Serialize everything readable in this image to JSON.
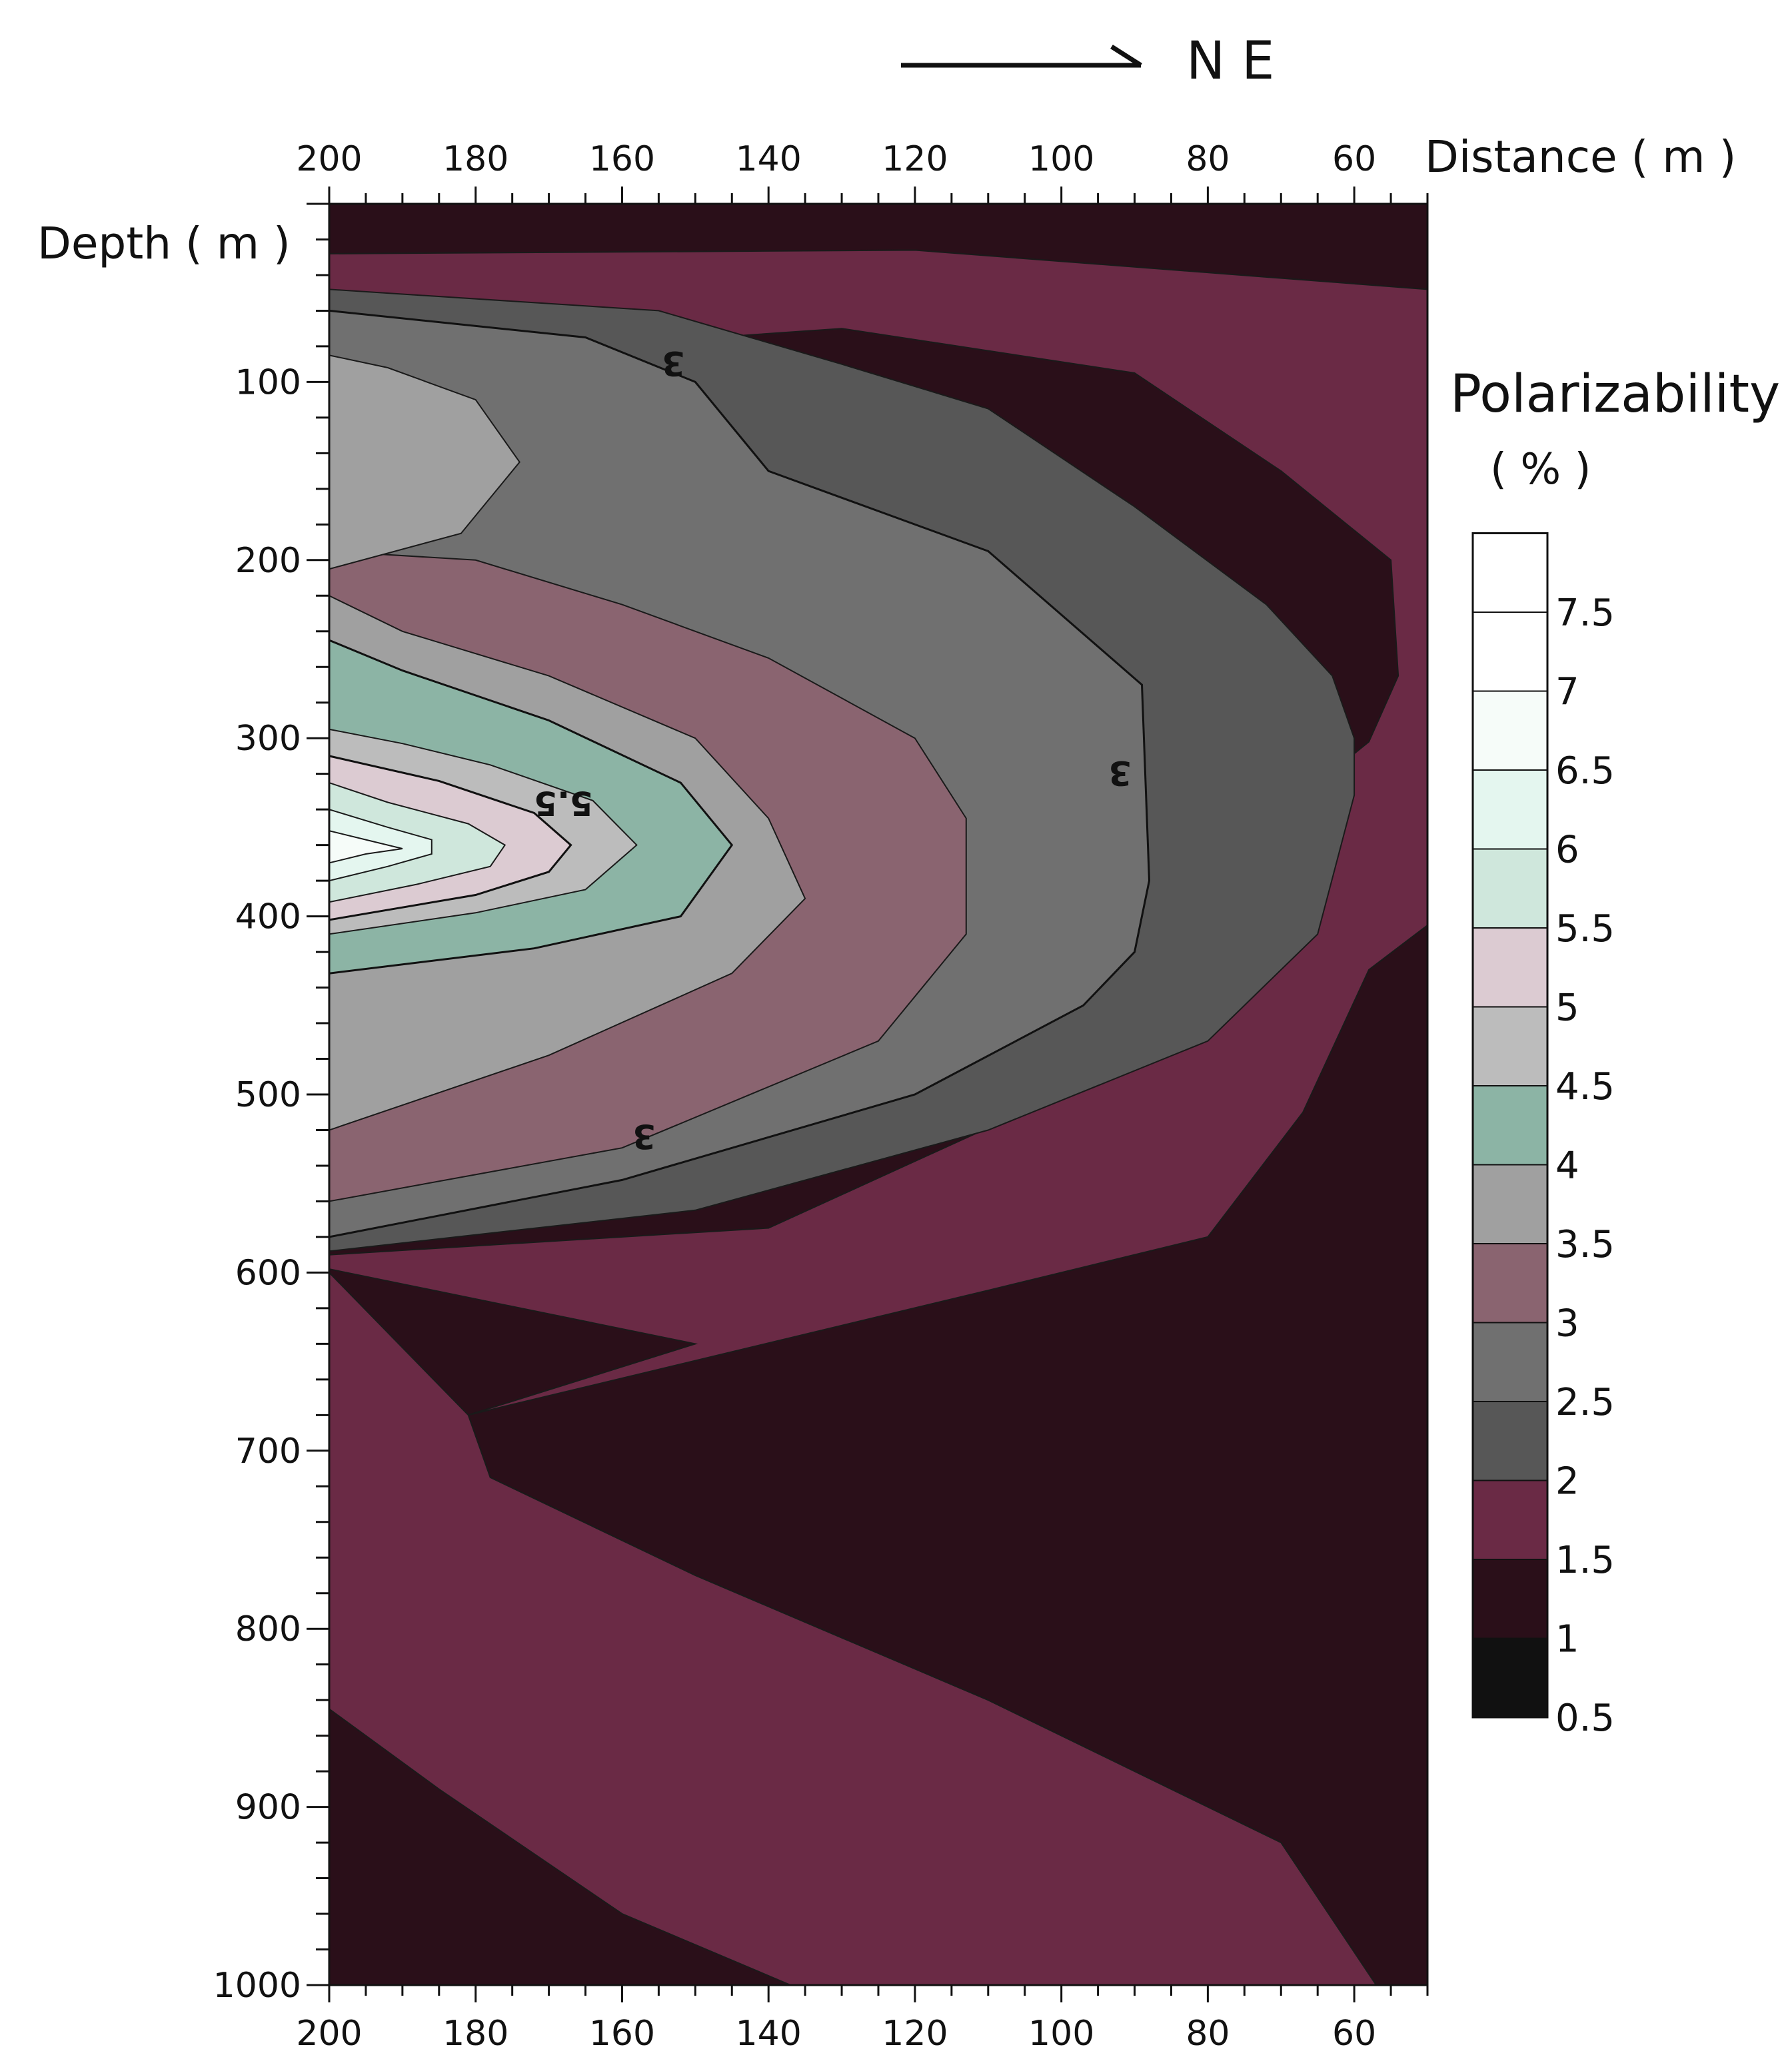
{
  "chart_data": {
    "type": "heatmap",
    "subtype": "filled-contour",
    "direction_label": "N E",
    "xlabel": "Distance ( m )",
    "ylabel": "Depth ( m )",
    "x_axis_position": "top-and-bottom",
    "x_reversed": true,
    "xlim": [
      200,
      50
    ],
    "ylim": [
      0,
      1000
    ],
    "x_ticks": [
      200,
      180,
      160,
      140,
      120,
      100,
      80,
      60
    ],
    "y_ticks": [
      100,
      200,
      300,
      400,
      500,
      600,
      700,
      800,
      900,
      1000
    ],
    "colorbar": {
      "title": "Polarizability",
      "unit": "( % )",
      "levels": [
        0.5,
        1,
        1.5,
        2,
        2.5,
        3,
        3.5,
        4,
        4.5,
        5,
        5.5,
        6,
        6.5,
        7,
        7.5,
        8
      ],
      "tick_labels": [
        "0.5",
        "1",
        "1.5",
        "2",
        "2.5",
        "3",
        "3.5",
        "4",
        "4.5",
        "5",
        "5.5",
        "6",
        "6.5",
        "7",
        "7.5"
      ],
      "colors": [
        "#111111",
        "#2a0f19",
        "#6a2a45",
        "#575757",
        "#707070",
        "#8a6470",
        "#a0a0a0",
        "#8cb4a5",
        "#bcbcbc",
        "#dccbd2",
        "#cfe7dc",
        "#e4f6ef",
        "#f6fcf9",
        "#ffffff",
        "#ffffff"
      ]
    },
    "contour_labels": [
      {
        "value": "3",
        "x": 153,
        "depth": 88
      },
      {
        "value": "3",
        "x": 92,
        "depth": 318
      },
      {
        "value": "3",
        "x": 157,
        "depth": 522
      },
      {
        "value": "5.5",
        "x": 168,
        "depth": 335
      }
    ],
    "regions": [
      {
        "level": 1,
        "polygon": [
          [
            50,
            0
          ],
          [
            200,
            0
          ],
          [
            200,
            28
          ],
          [
            120,
            26
          ],
          [
            50,
            48
          ]
        ]
      },
      {
        "level": 1,
        "polygon": [
          [
            50,
            405
          ],
          [
            58,
            430
          ],
          [
            67,
            510
          ],
          [
            80,
            580
          ],
          [
            110,
            610
          ],
          [
            150,
            640
          ],
          [
            181,
            680
          ],
          [
            178,
            715
          ],
          [
            150,
            770
          ],
          [
            110,
            840
          ],
          [
            70,
            920
          ],
          [
            57,
            1000
          ],
          [
            50,
            1000
          ]
        ]
      },
      {
        "level": 2,
        "polygon": [
          [
            200,
            28
          ],
          [
            200,
            90
          ],
          [
            130,
            70
          ],
          [
            90,
            95
          ],
          [
            70,
            150
          ],
          [
            55,
            200
          ],
          [
            54,
            265
          ],
          [
            58,
            302
          ],
          [
            67,
            332
          ],
          [
            80,
            405
          ],
          [
            100,
            500
          ],
          [
            140,
            575
          ],
          [
            200,
            590
          ],
          [
            200,
            598
          ],
          [
            150,
            640
          ],
          [
            181,
            680
          ],
          [
            178,
            715
          ],
          [
            150,
            770
          ],
          [
            110,
            840
          ],
          [
            70,
            920
          ],
          [
            57,
            1000
          ],
          [
            137,
            1000
          ],
          [
            160,
            960
          ],
          [
            185,
            890
          ],
          [
            200,
            845
          ],
          [
            200,
            600
          ],
          [
            181,
            680
          ],
          [
            110,
            610
          ],
          [
            80,
            580
          ],
          [
            67,
            510
          ],
          [
            58,
            430
          ],
          [
            50,
            405
          ],
          [
            50,
            48
          ],
          [
            120,
            26
          ]
        ]
      },
      {
        "level": 3,
        "polygon": [
          [
            200,
            48
          ],
          [
            200,
            588
          ],
          [
            150,
            565
          ],
          [
            110,
            520
          ],
          [
            80,
            470
          ],
          [
            65,
            410
          ],
          [
            60,
            332
          ],
          [
            60,
            300
          ],
          [
            63,
            265
          ],
          [
            72,
            225
          ],
          [
            90,
            170
          ],
          [
            110,
            115
          ],
          [
            130,
            90
          ],
          [
            155,
            60
          ]
        ]
      },
      {
        "level": 4,
        "polygon": [
          [
            200,
            60
          ],
          [
            200,
            580
          ],
          [
            160,
            548
          ],
          [
            120,
            500
          ],
          [
            97,
            450
          ],
          [
            90,
            420
          ],
          [
            88,
            380
          ],
          [
            89,
            270
          ],
          [
            110,
            195
          ],
          [
            140,
            150
          ],
          [
            150,
            100
          ],
          [
            165,
            75
          ]
        ]
      },
      {
        "level": 5,
        "polygon": [
          [
            200,
            75
          ],
          [
            200,
            560
          ],
          [
            160,
            530
          ],
          [
            125,
            470
          ],
          [
            113,
            410
          ],
          [
            113,
            345
          ],
          [
            120,
            300
          ],
          [
            140,
            255
          ],
          [
            160,
            225
          ],
          [
            180,
            200
          ],
          [
            200,
            195
          ]
        ]
      },
      {
        "level": 6,
        "polygon": [
          [
            200,
            220
          ],
          [
            200,
            520
          ],
          [
            170,
            478
          ],
          [
            145,
            432
          ],
          [
            135,
            390
          ],
          [
            140,
            345
          ],
          [
            150,
            300
          ],
          [
            170,
            265
          ],
          [
            190,
            240
          ]
        ]
      },
      {
        "level": 6,
        "polygon": [
          [
            200,
            85
          ],
          [
            200,
            205
          ],
          [
            182,
            185
          ],
          [
            174,
            145
          ],
          [
            180,
            110
          ],
          [
            192,
            92
          ]
        ]
      },
      {
        "level": 7,
        "polygon": [
          [
            200,
            245
          ],
          [
            200,
            432
          ],
          [
            172,
            418
          ],
          [
            152,
            400
          ],
          [
            145,
            360
          ],
          [
            152,
            325
          ],
          [
            170,
            290
          ],
          [
            190,
            262
          ]
        ]
      },
      {
        "level": 8,
        "polygon": [
          [
            200,
            295
          ],
          [
            200,
            410
          ],
          [
            180,
            398
          ],
          [
            165,
            385
          ],
          [
            158,
            360
          ],
          [
            164,
            335
          ],
          [
            178,
            315
          ],
          [
            190,
            303
          ]
        ]
      },
      {
        "level": 9,
        "polygon": [
          [
            200,
            310
          ],
          [
            200,
            402
          ],
          [
            180,
            388
          ],
          [
            170,
            375
          ],
          [
            167,
            360
          ],
          [
            172,
            342
          ],
          [
            185,
            324
          ]
        ]
      },
      {
        "level": 10,
        "polygon": [
          [
            200,
            325
          ],
          [
            200,
            392
          ],
          [
            188,
            382
          ],
          [
            178,
            372
          ],
          [
            176,
            360
          ],
          [
            181,
            348
          ],
          [
            192,
            336
          ]
        ]
      },
      {
        "level": 11,
        "polygon": [
          [
            200,
            340
          ],
          [
            200,
            380
          ],
          [
            192,
            372
          ],
          [
            186,
            365
          ],
          [
            186,
            357
          ],
          [
            192,
            350
          ]
        ]
      },
      {
        "level": 12,
        "polygon": [
          [
            200,
            352
          ],
          [
            200,
            370
          ],
          [
            195,
            365
          ],
          [
            190,
            362
          ],
          [
            195,
            357
          ]
        ]
      }
    ],
    "contour_lines": [
      [
        [
          200,
          60
        ],
        [
          165,
          75
        ],
        [
          150,
          100
        ],
        [
          140,
          150
        ],
        [
          110,
          195
        ],
        [
          89,
          270
        ],
        [
          88,
          380
        ],
        [
          90,
          420
        ],
        [
          97,
          450
        ],
        [
          120,
          500
        ],
        [
          160,
          548
        ],
        [
          200,
          580
        ]
      ],
      [
        [
          200,
          245
        ],
        [
          190,
          262
        ],
        [
          170,
          290
        ],
        [
          152,
          325
        ],
        [
          145,
          360
        ],
        [
          152,
          400
        ],
        [
          172,
          418
        ],
        [
          200,
          432
        ]
      ],
      [
        [
          200,
          310
        ],
        [
          185,
          324
        ],
        [
          172,
          342
        ],
        [
          167,
          360
        ],
        [
          170,
          375
        ],
        [
          180,
          388
        ],
        [
          200,
          402
        ]
      ]
    ]
  }
}
